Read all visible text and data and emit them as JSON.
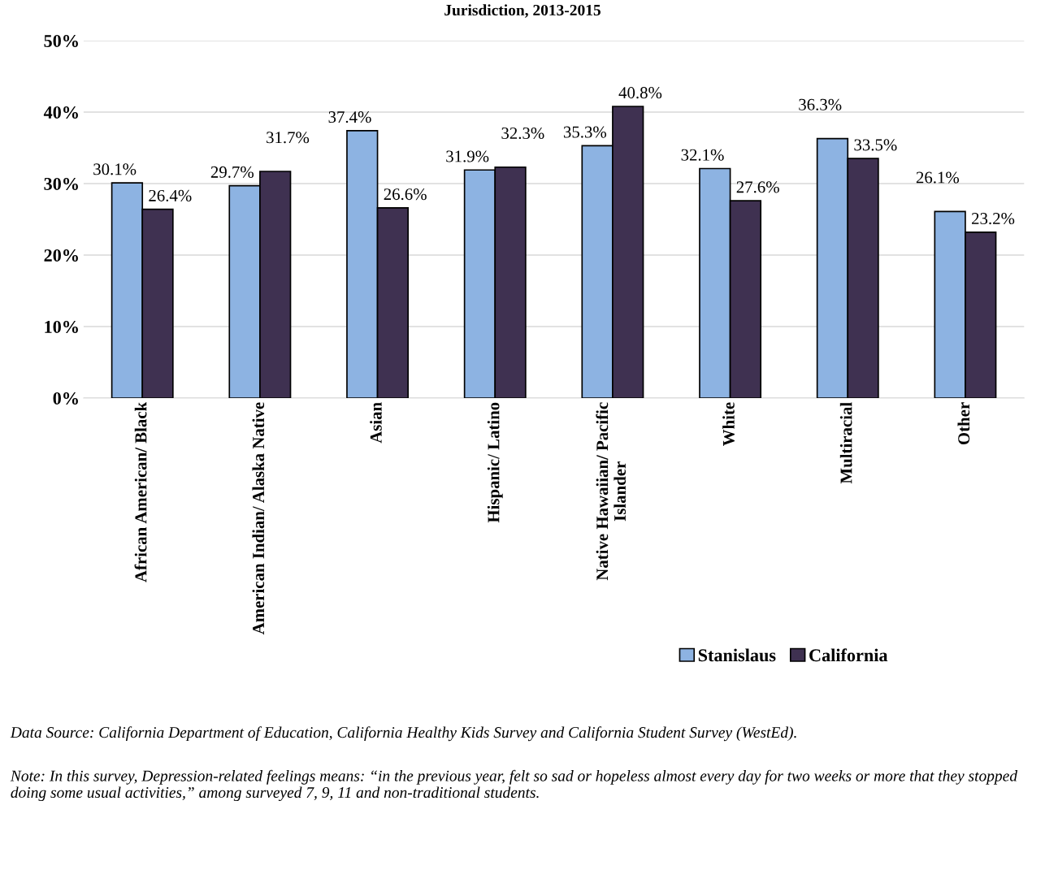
{
  "chart_data": {
    "type": "bar",
    "title": "Jurisdiction, 2013-2015",
    "categories": [
      "African American/ Black",
      "American Indian/ Alaska Native",
      "Asian",
      "Hispanic/ Latino",
      "Native Hawaiian/ Pacific\nIslander",
      "White",
      "Multiracial",
      "Other"
    ],
    "series": [
      {
        "name": "Stanislaus",
        "color": "#8db3e2",
        "values": [
          30.1,
          29.7,
          37.4,
          31.9,
          35.3,
          32.1,
          36.3,
          26.1
        ],
        "value_labels": [
          "30.1%",
          "29.7%",
          "37.4%",
          "31.9%",
          "35.3%",
          "32.1%",
          "36.3%",
          "26.1%"
        ]
      },
      {
        "name": "California",
        "color": "#3f3151",
        "values": [
          26.4,
          31.7,
          26.6,
          32.3,
          40.8,
          27.6,
          33.5,
          23.2
        ],
        "value_labels": [
          "26.4%",
          "31.7%",
          "26.6%",
          "32.3%",
          "40.8%",
          "27.6%",
          "33.5%",
          "23.2%"
        ]
      }
    ],
    "ylim": [
      0,
      50
    ],
    "yticks": [
      {
        "value": 0,
        "label": "0%"
      },
      {
        "value": 10,
        "label": "10%"
      },
      {
        "value": 20,
        "label": "20%"
      },
      {
        "value": 30,
        "label": "30%"
      },
      {
        "value": 40,
        "label": "40%"
      },
      {
        "value": 50,
        "label": "50%"
      }
    ],
    "grid": "y",
    "legend": "right",
    "annotations": [
      "Data Source: California Department of Education, California Healthy Kids Survey and California Student Survey (WestEd).",
      "Note: In this survey, Depression-related feelings means: “in the previous year, felt so sad or hopeless almost every day for two weeks or more that they stopped doing some usual activities,” among surveyed 7, 9, 11 and non-traditional students."
    ]
  }
}
